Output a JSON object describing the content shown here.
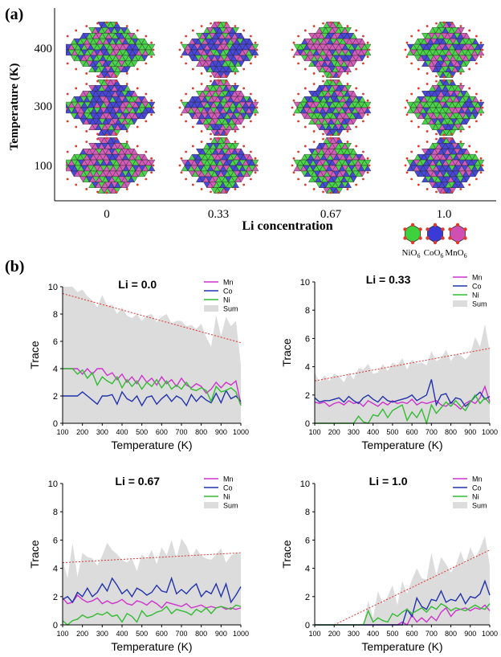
{
  "panel_a": {
    "label": "(a)",
    "ylabel": "Temperature (K)",
    "xlabel": "Li concentration",
    "yticks": [
      "400",
      "300",
      "100"
    ],
    "xticks": [
      "0",
      "0.33",
      "0.67",
      "1.0"
    ],
    "legend": [
      {
        "name": "NiO",
        "sub": "6",
        "color": "#3dd13d"
      },
      {
        "name": "CoO",
        "sub": "6",
        "color": "#3a3ad6"
      },
      {
        "name": "MnO",
        "sub": "6",
        "color": "#d04fb3"
      }
    ],
    "grid_colors": {
      "ni": "#3dd13d",
      "co": "#3a3ad6",
      "mn": "#d04fb3",
      "vertex": "#e03a2a"
    }
  },
  "panel_b": {
    "label": "(b)"
  },
  "chart_data": [
    {
      "type": "line",
      "title": "Li = 0.0",
      "xlabel": "Temperature (K)",
      "ylabel": "Trace",
      "xlim": [
        100,
        1000
      ],
      "ylim": [
        0,
        10
      ],
      "xticks": [
        100,
        200,
        300,
        400,
        500,
        600,
        700,
        800,
        900,
        1000
      ],
      "yticks": [
        0,
        2,
        4,
        6,
        8,
        10
      ],
      "x": [
        100,
        125,
        150,
        175,
        200,
        225,
        250,
        275,
        300,
        325,
        350,
        375,
        400,
        425,
        450,
        475,
        500,
        525,
        550,
        575,
        600,
        625,
        650,
        675,
        700,
        725,
        750,
        775,
        800,
        825,
        850,
        875,
        900,
        925,
        950,
        975,
        1000
      ],
      "series": [
        {
          "name": "Mn",
          "color": "#cc33cc",
          "values": [
            4,
            4,
            4,
            4,
            3.6,
            4,
            3.6,
            4,
            4,
            3.5,
            3.7,
            3.2,
            3.6,
            3,
            3.4,
            2.9,
            3.5,
            3,
            3.3,
            2.8,
            3.4,
            2.9,
            3.2,
            2.7,
            3.3,
            2.8,
            2.6,
            2.9,
            2.7,
            2.2,
            2.5,
            3,
            2.6,
            3,
            2.8,
            3.1,
            1.4
          ]
        },
        {
          "name": "Co",
          "color": "#2233aa",
          "values": [
            2,
            2,
            2,
            2,
            2.3,
            2,
            1.7,
            1.4,
            2,
            2,
            2.1,
            1.4,
            2.3,
            1.8,
            1.6,
            2,
            1.3,
            1.9,
            2,
            1.4,
            1.8,
            2.1,
            1.6,
            2,
            1.8,
            1.3,
            2.1,
            1.6,
            2,
            1.7,
            1.5,
            2.2,
            1.5,
            2.4,
            1.8,
            2,
            1.6
          ]
        },
        {
          "name": "Ni",
          "color": "#33bb33",
          "values": [
            4,
            4,
            4,
            3.6,
            3.9,
            3.3,
            3.7,
            2.8,
            3.4,
            3.1,
            2.9,
            3.4,
            2.6,
            3.2,
            2.7,
            3.1,
            2.5,
            3,
            2.7,
            3.2,
            2.6,
            3.1,
            2.5,
            2.8,
            2.5,
            3,
            2.5,
            2.4,
            2.6,
            2.4,
            1.6,
            2.7,
            2.3,
            2.4,
            2.6,
            2.3,
            1.3
          ]
        },
        {
          "name": "Sum",
          "color": "#dcdcdc",
          "fill": true,
          "values": [
            10,
            10,
            10,
            9.6,
            9.8,
            9.3,
            9,
            8.5,
            9.4,
            8.6,
            8.7,
            8,
            8.5,
            7.9,
            7.7,
            8,
            7.5,
            7.9,
            8,
            7.4,
            7.8,
            8,
            7.3,
            7.5,
            7.5,
            7.1,
            7.2,
            6.9,
            7.3,
            6.3,
            5.6,
            7.9,
            6.4,
            7.8,
            7.1,
            7.5,
            4.3
          ]
        },
        {
          "name": "",
          "type": "trend",
          "color": "#e03030",
          "x": [
            100,
            1000
          ],
          "values": [
            9.5,
            5.9
          ]
        }
      ],
      "legend": {
        "entries": [
          "Mn",
          "Co",
          "Ni",
          "Sum"
        ],
        "position": "top-right"
      }
    },
    {
      "type": "line",
      "title": "Li = 0.33",
      "xlabel": "Temperature (K)",
      "ylabel": "Trace",
      "xlim": [
        100,
        1000
      ],
      "ylim": [
        0,
        10
      ],
      "xticks": [
        100,
        200,
        300,
        400,
        500,
        600,
        700,
        800,
        900,
        1000
      ],
      "yticks": [
        0,
        2,
        4,
        6,
        8,
        10
      ],
      "x": [
        100,
        125,
        150,
        175,
        200,
        225,
        250,
        275,
        300,
        325,
        350,
        375,
        400,
        425,
        450,
        475,
        500,
        525,
        550,
        575,
        600,
        625,
        650,
        675,
        700,
        725,
        750,
        775,
        800,
        825,
        850,
        875,
        900,
        925,
        950,
        975,
        1000
      ],
      "series": [
        {
          "name": "Mn",
          "color": "#cc33cc",
          "values": [
            1.5,
            1.4,
            1.5,
            1.2,
            1.4,
            1.5,
            1.3,
            1.6,
            1.4,
            1.5,
            1.2,
            1.6,
            1.4,
            1.2,
            1.5,
            1.3,
            1.6,
            1.4,
            1.5,
            1.4,
            1.7,
            1.3,
            1.5,
            1.4,
            1.5,
            1.6,
            1.3,
            1.2,
            1.5,
            1.3,
            1,
            1.4,
            1.6,
            1.4,
            1.8,
            2.6,
            1.5
          ]
        },
        {
          "name": "Co",
          "color": "#2233aa",
          "values": [
            1.8,
            1.5,
            1.6,
            1.6,
            1.7,
            1.8,
            1.5,
            1.9,
            1.6,
            1.4,
            1.8,
            2,
            1.7,
            1.5,
            1.9,
            1.6,
            1.5,
            1.6,
            1.7,
            1.8,
            2,
            1.6,
            1.8,
            2,
            3.1,
            1.3,
            2,
            2.1,
            1.4,
            1.8,
            1.7,
            1.2,
            1.5,
            1.9,
            2.2,
            1.7,
            1.9
          ]
        },
        {
          "name": "Ni",
          "color": "#33bb33",
          "values": [
            0,
            0,
            0,
            0,
            0,
            0,
            0,
            0,
            0,
            0.5,
            0.1,
            0,
            0.6,
            0.5,
            1,
            0.4,
            0.9,
            1.1,
            1.3,
            0.2,
            0.8,
            0.4,
            1,
            0,
            1.3,
            0.7,
            1.1,
            1.5,
            1.2,
            1.6,
            1.2,
            0.9,
            1.5,
            2,
            1.4,
            1.8,
            1.4
          ]
        },
        {
          "name": "Sum",
          "color": "#dcdcdc",
          "fill": true,
          "values": [
            3.6,
            2.9,
            3.4,
            3,
            3.5,
            3.3,
            2.9,
            3.6,
            3.1,
            3.9,
            3.8,
            4.2,
            3.5,
            3.6,
            4.2,
            3.7,
            4.3,
            4.1,
            4.6,
            3.8,
            4.5,
            4.2,
            4.3,
            4.1,
            5.1,
            4.4,
            4.6,
            5.2,
            4.4,
            4.9,
            4.8,
            4.5,
            4.9,
            6.1,
            5.4,
            7,
            5.1
          ]
        },
        {
          "name": "",
          "type": "trend",
          "color": "#e03030",
          "x": [
            100,
            1000
          ],
          "values": [
            3,
            5.3
          ]
        }
      ],
      "legend": {
        "entries": [
          "Mn",
          "Co",
          "Ni",
          "Sum"
        ],
        "position": "top-right"
      }
    },
    {
      "type": "line",
      "title": "Li = 0.67",
      "xlabel": "Temperature (K)",
      "ylabel": "Trace",
      "xlim": [
        100,
        1000
      ],
      "ylim": [
        0,
        10
      ],
      "xticks": [
        100,
        200,
        300,
        400,
        500,
        600,
        700,
        800,
        900,
        1000
      ],
      "yticks": [
        0,
        2,
        4,
        6,
        8,
        10
      ],
      "x": [
        100,
        125,
        150,
        175,
        200,
        225,
        250,
        275,
        300,
        325,
        350,
        375,
        400,
        425,
        450,
        475,
        500,
        525,
        550,
        575,
        600,
        625,
        650,
        675,
        700,
        725,
        750,
        775,
        800,
        825,
        850,
        875,
        900,
        925,
        950,
        975,
        1000
      ],
      "series": [
        {
          "name": "Mn",
          "color": "#cc33cc",
          "values": [
            1.9,
            1.5,
            1.6,
            2.1,
            1.8,
            1.6,
            1.7,
            1.9,
            1.5,
            1.7,
            1.5,
            1.6,
            1.8,
            1.5,
            1.4,
            1.7,
            1.6,
            1.4,
            1.7,
            1.5,
            1.2,
            1.6,
            1.5,
            1.4,
            1.3,
            1.5,
            1.2,
            1.3,
            1.4,
            1.2,
            1.3,
            1.2,
            1.3,
            1.1,
            1.2,
            1.1,
            1.2
          ]
        },
        {
          "name": "Co",
          "color": "#2233aa",
          "values": [
            1.8,
            2,
            1.6,
            2.3,
            2,
            2.6,
            2,
            2.3,
            2.9,
            2.4,
            3.3,
            2.8,
            2.2,
            2.5,
            2,
            2.6,
            2.4,
            2.1,
            2.3,
            2.8,
            2.4,
            2.3,
            3.3,
            2.2,
            2.5,
            2.2,
            2.6,
            2.9,
            2,
            2.4,
            2.2,
            2.9,
            2,
            2.9,
            1.6,
            2.1,
            2.7
          ]
        },
        {
          "name": "Ni",
          "color": "#33bb33",
          "values": [
            0.3,
            0,
            0.3,
            0.4,
            0.7,
            0.5,
            0.6,
            0.8,
            0.7,
            0.9,
            0.6,
            0.7,
            0.2,
            0.8,
            0.6,
            0.2,
            1,
            0.6,
            0.7,
            0.9,
            1,
            1.3,
            0.8,
            1.1,
            1,
            0.9,
            0.7,
            1.1,
            0.9,
            1.2,
            0.8,
            1.2,
            1.3,
            1.2,
            1.1,
            1.4,
            1.3
          ]
        },
        {
          "name": "Sum",
          "color": "#dcdcdc",
          "fill": true,
          "values": [
            4.6,
            3.3,
            5.8,
            3.4,
            5.1,
            4.8,
            4.7,
            4.2,
            4.9,
            5.8,
            5.3,
            5,
            4.6,
            4.4,
            4.7,
            3.8,
            5,
            4.6,
            5.3,
            4.3,
            5.5,
            4.9,
            6,
            4.7,
            6.1,
            5.6,
            4.7,
            5.4,
            4.9,
            4.7,
            4.6,
            5,
            5.4,
            4.4,
            4.9,
            5.1,
            5
          ]
        },
        {
          "name": "",
          "type": "trend",
          "color": "#e03030",
          "x": [
            100,
            1000
          ],
          "values": [
            4.4,
            5.1
          ]
        }
      ],
      "legend": {
        "entries": [
          "Mn",
          "Co",
          "Ni",
          "Sum"
        ],
        "position": "top-right"
      }
    },
    {
      "type": "line",
      "title": "Li = 1.0",
      "xlabel": "Temperature (K)",
      "ylabel": "Trace",
      "xlim": [
        100,
        1000
      ],
      "ylim": [
        0,
        10
      ],
      "xticks": [
        100,
        200,
        300,
        400,
        500,
        600,
        700,
        800,
        900,
        1000
      ],
      "yticks": [
        0,
        2,
        4,
        6,
        8,
        10
      ],
      "x": [
        100,
        125,
        150,
        175,
        200,
        225,
        250,
        275,
        300,
        325,
        350,
        375,
        400,
        425,
        450,
        475,
        500,
        525,
        550,
        575,
        600,
        625,
        650,
        675,
        700,
        725,
        750,
        775,
        800,
        825,
        850,
        875,
        900,
        925,
        950,
        975,
        1000
      ],
      "series": [
        {
          "name": "Mn",
          "color": "#cc33cc",
          "values": [
            0,
            0,
            0,
            0,
            0,
            0,
            0,
            0,
            0,
            0,
            0,
            0,
            0,
            0,
            0,
            0,
            0,
            0,
            0.2,
            0,
            0.7,
            0.2,
            0.5,
            0.2,
            0.6,
            0.3,
            0.9,
            1.2,
            0.6,
            1,
            1.1,
            1.2,
            1,
            1.2,
            1.1,
            1.4,
            1
          ]
        },
        {
          "name": "Co",
          "color": "#2233aa",
          "values": [
            0,
            0,
            0,
            0,
            0,
            0,
            0,
            0,
            0,
            0,
            0,
            0,
            0,
            0,
            0,
            0,
            0,
            0,
            0,
            1.1,
            0.6,
            1.9,
            1.3,
            1.1,
            1.8,
            1.7,
            2.4,
            1.6,
            1.8,
            1.7,
            2.2,
            1.5,
            2,
            1.9,
            2.2,
            3.1,
            2.1
          ]
        },
        {
          "name": "Ni",
          "color": "#33bb33",
          "values": [
            0,
            0,
            0,
            0,
            0,
            0,
            0,
            0,
            0,
            0,
            0,
            1,
            0.2,
            0.5,
            0.3,
            0.2,
            0.8,
            0.6,
            0.9,
            1.1,
            0.8,
            1,
            1.2,
            0.9,
            1.3,
            1.1,
            1.5,
            1.3,
            1,
            1.2,
            1.1,
            1,
            1.2,
            1.4,
            1.2,
            1.1,
            1.5
          ]
        },
        {
          "name": "Sum",
          "color": "#dcdcdc",
          "fill": true,
          "values": [
            0,
            0,
            0,
            0,
            0,
            0,
            0,
            0,
            0,
            0,
            0,
            1.7,
            0.5,
            2.4,
            1.5,
            2,
            2.8,
            1.4,
            3.1,
            2.2,
            3.2,
            4,
            3.3,
            3.2,
            5.1,
            3.5,
            4.8,
            4.3,
            3.7,
            4.2,
            5.2,
            4.3,
            5.5,
            4.7,
            5.4,
            6.3,
            4.2
          ]
        },
        {
          "name": "",
          "type": "trend",
          "color": "#e03030",
          "x": [
            200,
            1000
          ],
          "values": [
            0,
            5.3
          ]
        }
      ],
      "legend": {
        "entries": [
          "Mn",
          "Co",
          "Ni",
          "Sum"
        ],
        "position": "top-right"
      }
    }
  ]
}
